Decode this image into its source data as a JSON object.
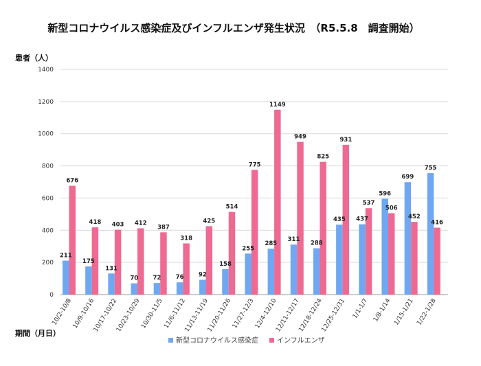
{
  "chart_data": {
    "type": "bar",
    "title": "新型コロナウイルス感染症及びインフルエンザ発生状況　（R5.5.8　調査開始）",
    "ylabel": "患者（人）",
    "xlabel": "期間（月日）",
    "ylim": [
      0,
      1400
    ],
    "yticks": [
      0,
      200,
      400,
      600,
      800,
      1000,
      1200,
      1400
    ],
    "grid": true,
    "legend_position": "bottom",
    "categories": [
      "10/2-10/8",
      "10/9-10/16",
      "10/17-10/22",
      "10/23-10/29",
      "10/30-11/5",
      "11/6-11/12",
      "11/13-11/19",
      "11/20-11/26",
      "11/27-12/3",
      "12/4-12/10",
      "12/11-12/17",
      "12/18-12/24",
      "12/25-12/31",
      "1/1-1/7",
      "1/8-1/14",
      "1/15-1/21",
      "1/22-1/28"
    ],
    "series": [
      {
        "name": "新型コロナウイルス感染症",
        "color": "#6fa8f0",
        "values": [
          211,
          175,
          131,
          70,
          72,
          76,
          92,
          158,
          255,
          285,
          311,
          288,
          435,
          437,
          596,
          699,
          755
        ]
      },
      {
        "name": "インフルエンザ",
        "color": "#ee6a92",
        "values": [
          676,
          418,
          403,
          412,
          387,
          318,
          425,
          514,
          775,
          1149,
          949,
          825,
          931,
          537,
          506,
          452,
          416
        ]
      }
    ]
  }
}
